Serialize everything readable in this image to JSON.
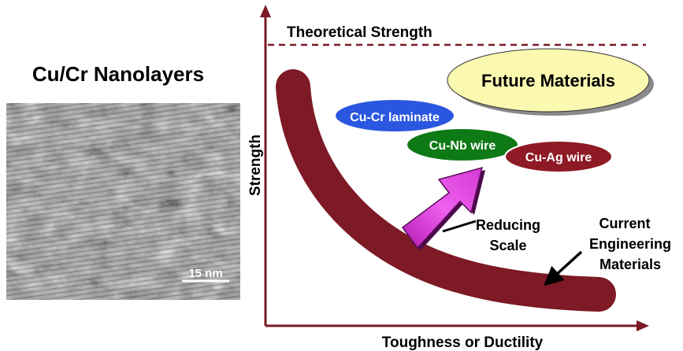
{
  "left_panel": {
    "title": "Cu/Cr Nanolayers",
    "scale_bar": "15 nm"
  },
  "diagram": {
    "theoretical_strength": "Theoretical Strength",
    "y_axis_label": "Strength",
    "x_axis_label": "Toughness or Ductility",
    "future_materials": "Future Materials",
    "materials": [
      {
        "label": "Cu-Cr laminate",
        "color": "#2b57e0"
      },
      {
        "label": "Cu-Nb wire",
        "color": "#0e7a16"
      },
      {
        "label": "Cu-Ag wire",
        "color": "#8e1a25"
      }
    ],
    "reducing_scale": [
      "Reducing",
      "Scale"
    ],
    "current_materials": [
      "Current",
      "Engineering",
      "Materials"
    ]
  },
  "colors": {
    "axis": "#7a1a24",
    "band": "#7d1a25",
    "future_fill": "#fbf8b0",
    "arrow_fill": "#e24fe0",
    "arrow_dark": "#6c0f6a"
  }
}
